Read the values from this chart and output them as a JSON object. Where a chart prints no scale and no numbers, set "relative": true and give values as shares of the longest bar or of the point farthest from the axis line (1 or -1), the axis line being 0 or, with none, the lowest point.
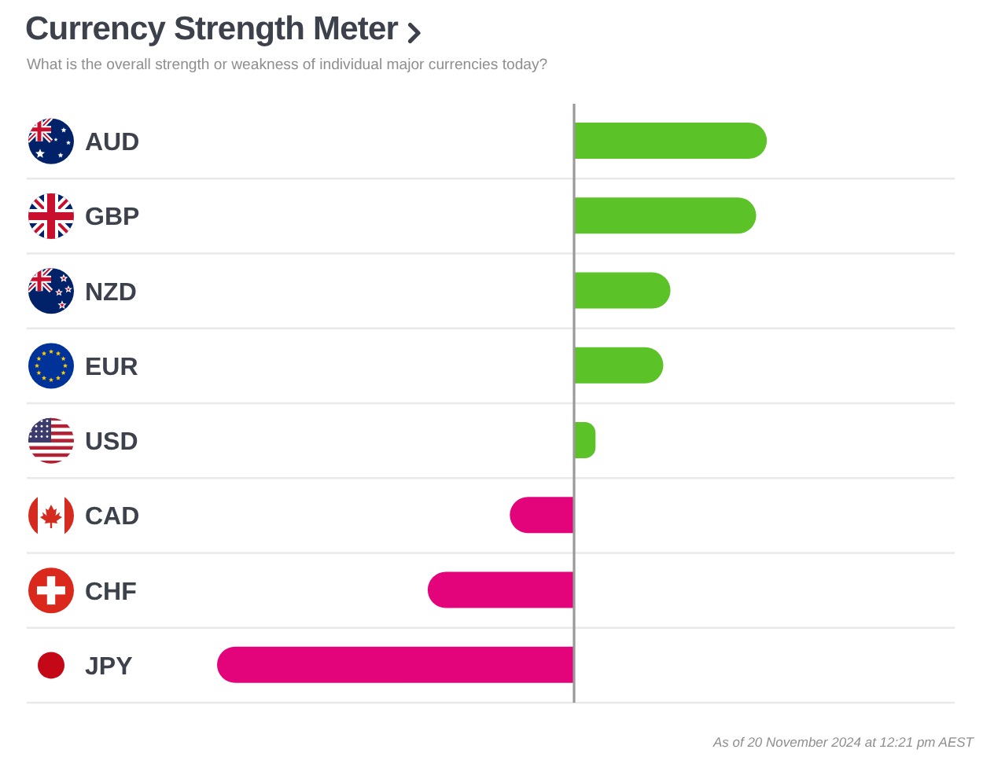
{
  "chart_data": {
    "type": "bar",
    "title": "Currency Strength Meter",
    "subtitle": "What is the overall strength or weakness of individual major currencies today?",
    "orientation": "horizontal",
    "relative": true,
    "categories": [
      "AUD",
      "GBP",
      "NZD",
      "EUR",
      "USD",
      "CAD",
      "CHF",
      "JPY"
    ],
    "values": [
      0.54,
      0.51,
      0.27,
      0.25,
      0.06,
      -0.18,
      -0.41,
      -1
    ],
    "colors": [
      "#5bc228",
      "#5bc228",
      "#5bc228",
      "#5bc228",
      "#5bc228",
      "#e3047c",
      "#e3047c",
      "#e3047c"
    ],
    "grid": "y",
    "annotations": [
      "As of 20 November 2024 at 12:21 pm AEST"
    ]
  }
}
